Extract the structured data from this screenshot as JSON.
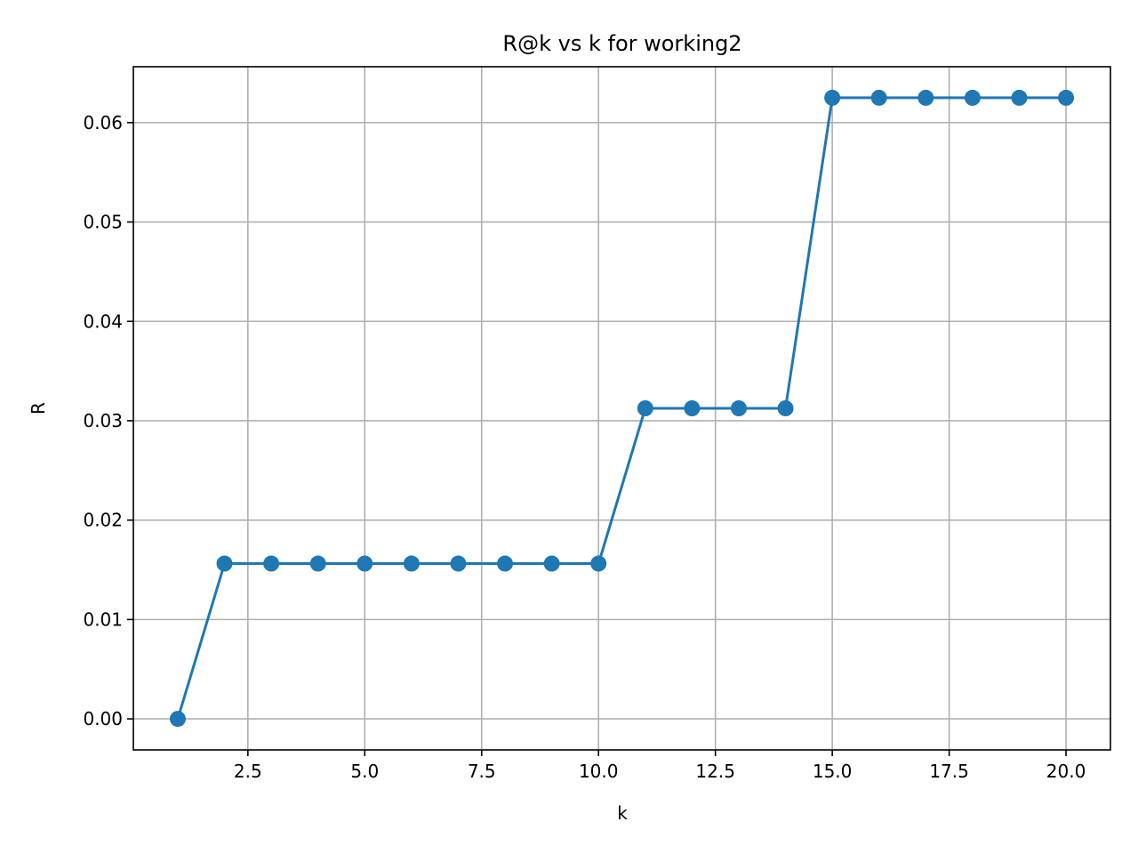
{
  "chart_data": {
    "type": "line",
    "title": "R@k vs k for working2",
    "xlabel": "k",
    "ylabel": "R",
    "xlim": [
      0.05,
      20.95
    ],
    "ylim": [
      -0.003125,
      0.065625
    ],
    "grid": true,
    "x_ticks": [
      2.5,
      5.0,
      7.5,
      10.0,
      12.5,
      15.0,
      17.5,
      20.0
    ],
    "x_tick_labels": [
      "2.5",
      "5.0",
      "7.5",
      "10.0",
      "12.5",
      "15.0",
      "17.5",
      "20.0"
    ],
    "y_ticks": [
      0.0,
      0.01,
      0.02,
      0.03,
      0.04,
      0.05,
      0.06
    ],
    "y_tick_labels": [
      "0.00",
      "0.01",
      "0.02",
      "0.03",
      "0.04",
      "0.05",
      "0.06"
    ],
    "series": [
      {
        "color": "#1f77b4",
        "marker": "circle",
        "x": [
          1,
          2,
          3,
          4,
          5,
          6,
          7,
          8,
          9,
          10,
          11,
          12,
          13,
          14,
          15,
          16,
          17,
          18,
          19,
          20
        ],
        "values": [
          0.0,
          0.015625,
          0.015625,
          0.015625,
          0.015625,
          0.015625,
          0.015625,
          0.015625,
          0.015625,
          0.015625,
          0.03125,
          0.03125,
          0.03125,
          0.03125,
          0.0625,
          0.0625,
          0.0625,
          0.0625,
          0.0625,
          0.0625
        ]
      }
    ]
  }
}
